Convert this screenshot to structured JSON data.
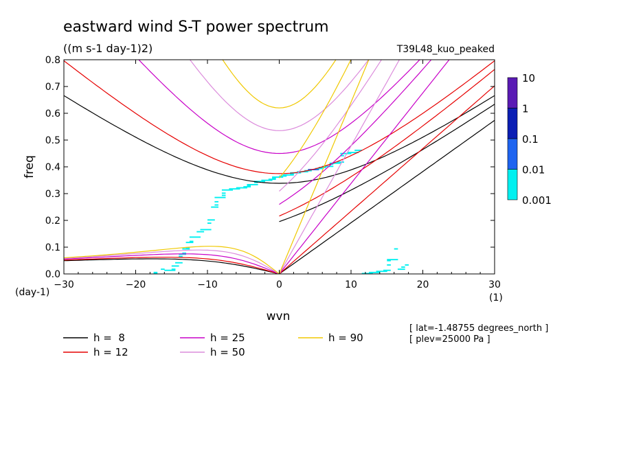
{
  "chart_data": {
    "type": "heatmap",
    "title": "eastward wind S-T power spectrum",
    "units": "((m s-1 day-1)2)",
    "run_label": "T39L48_kuo_peaked",
    "xlabel": "wvn",
    "ylabel": "freq",
    "x_unit": "(1)",
    "y_unit": "(day-1)",
    "xlim": [
      -30,
      30
    ],
    "ylim": [
      0,
      0.8
    ],
    "xticks": [
      -30,
      -20,
      -10,
      0,
      10,
      20,
      30
    ],
    "yticks": [
      0.0,
      0.1,
      0.2,
      0.3,
      0.4,
      0.5,
      0.6,
      0.7,
      0.8
    ],
    "ytick_labels": [
      "0.0",
      "0.1",
      "0.2",
      "0.3",
      "0.4",
      "0.5",
      "0.6",
      "0.7",
      "0.8"
    ],
    "colorbar": {
      "levels": [
        "10",
        "1",
        "0.1",
        "0.01",
        "0.001"
      ],
      "colors": [
        "#5a1ab4",
        "#0a1eb4",
        "#1e64f0",
        "#00f0f0"
      ]
    },
    "dispersion_curves": [
      {
        "name": "h =  8",
        "h": 8,
        "color": "#000000"
      },
      {
        "name": "h = 12",
        "h": 12,
        "color": "#e60000"
      },
      {
        "name": "h = 25",
        "h": 25,
        "color": "#c800c8"
      },
      {
        "name": "h = 50",
        "h": 50,
        "color": "#dc8cdc"
      },
      {
        "name": "h = 90",
        "h": 90,
        "color": "#f0c800"
      }
    ],
    "annotations": [
      "[ lat=-1.48755 degrees_north ]",
      "[ plev=25000 Pa ]"
    ]
  }
}
